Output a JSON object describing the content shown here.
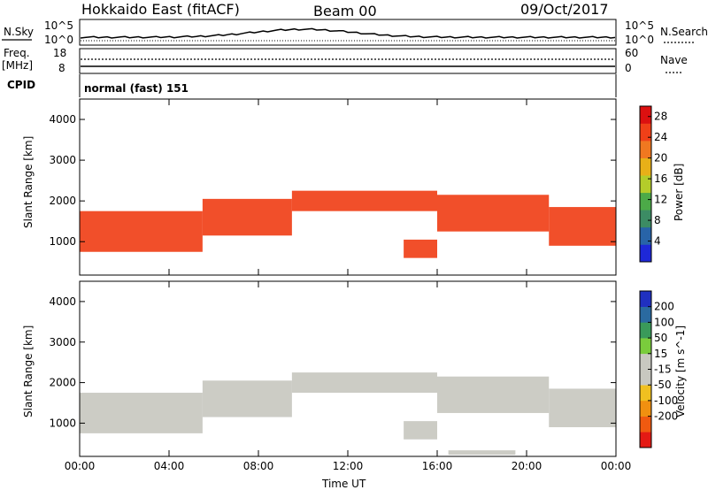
{
  "header": {
    "title": "Hokkaido East (fitACF)",
    "beam": "Beam 00",
    "date": "09/Oct/2017"
  },
  "top_panels": {
    "nsky_label": "N.Sky",
    "nsky_ticks": [
      "10^5",
      "10^0"
    ],
    "nsearch_label": "N.Search",
    "nsearch_ticks": [
      "10^5",
      "10^0"
    ],
    "freq_label_1": "Freq.",
    "freq_label_2": "[MHz]",
    "freq_ticks": [
      "18",
      "8"
    ],
    "nave_label": "Nave",
    "nave_ticks": [
      "60",
      "0"
    ],
    "cpid_label": "CPID",
    "cpid_value": "normal (fast) 151"
  },
  "colors": {
    "power_scale": [
      "#1e28d8",
      "#2864a8",
      "#3c8c64",
      "#4caa48",
      "#b4cc2a",
      "#e8b018",
      "#f07820",
      "#f04018",
      "#dc1010"
    ],
    "velocity_scale": [
      "#e41a14",
      "#f05a10",
      "#f09010",
      "#f0c020",
      "#c8c8c0",
      "#c8c8c0",
      "#7acc3c",
      "#3a9a5a",
      "#2a6aa0",
      "#2030c0"
    ]
  },
  "chart_data": [
    {
      "type": "heatmap",
      "name": "",
      "title": "",
      "xlabel": "",
      "ylabel": "Slant Range [km]",
      "x_ticks": [
        "00:00",
        "04:00",
        "08:00",
        "12:00",
        "16:00",
        "20:00",
        "00:00"
      ],
      "xlim_hours": [
        0,
        24
      ],
      "y_ticks": [
        1000,
        2000,
        3000,
        4000
      ],
      "ylim": [
        180,
        4500
      ],
      "colorbar_label": "Power [dB]",
      "colorbar_ticks": [
        4,
        8,
        12,
        16,
        20,
        24,
        28
      ],
      "colorbar_range": [
        0,
        30
      ],
      "grid": false,
      "echo_bands": [
        {
          "from_hour": 0.0,
          "to_hour": 5.5,
          "range_low": 750,
          "range_high": 1750,
          "power": 26
        },
        {
          "from_hour": 5.5,
          "to_hour": 9.5,
          "range_low": 1150,
          "range_high": 2050,
          "power": 24
        },
        {
          "from_hour": 9.5,
          "to_hour": 16.0,
          "range_low": 1750,
          "range_high": 2250,
          "power": 24
        },
        {
          "from_hour": 14.5,
          "to_hour": 16.0,
          "range_low": 600,
          "range_high": 1050,
          "power": 26
        },
        {
          "from_hour": 16.0,
          "to_hour": 21.0,
          "range_low": 1250,
          "range_high": 2150,
          "power": 26
        },
        {
          "from_hour": 21.0,
          "to_hour": 24.0,
          "range_low": 900,
          "range_high": 1850,
          "power": 26
        }
      ]
    },
    {
      "type": "heatmap",
      "name": "",
      "title": "",
      "xlabel": "Time UT",
      "ylabel": "Slant Range [km]",
      "x_ticks": [
        "00:00",
        "04:00",
        "08:00",
        "12:00",
        "16:00",
        "20:00",
        "00:00"
      ],
      "xlim_hours": [
        0,
        24
      ],
      "y_ticks": [
        1000,
        2000,
        3000,
        4000
      ],
      "ylim": [
        180,
        4500
      ],
      "colorbar_label": "Velocity [m s^-1]",
      "colorbar_ticks": [
        200,
        100,
        50,
        15,
        -15,
        -50,
        -100,
        -200
      ],
      "colorbar_range": [
        -250,
        250
      ],
      "grid": false,
      "echo_bands": [
        {
          "from_hour": 0.0,
          "to_hour": 5.5,
          "range_low": 750,
          "range_high": 1750,
          "velocity": 0
        },
        {
          "from_hour": 5.5,
          "to_hour": 9.5,
          "range_low": 1150,
          "range_high": 2050,
          "velocity": 0
        },
        {
          "from_hour": 9.5,
          "to_hour": 16.0,
          "range_low": 1750,
          "range_high": 2250,
          "velocity": 0
        },
        {
          "from_hour": 14.5,
          "to_hour": 16.0,
          "range_low": 600,
          "range_high": 1050,
          "velocity": 0
        },
        {
          "from_hour": 16.0,
          "to_hour": 21.0,
          "range_low": 1250,
          "range_high": 2150,
          "velocity": 0
        },
        {
          "from_hour": 21.0,
          "to_hour": 24.0,
          "range_low": 900,
          "range_high": 1850,
          "velocity": 0
        },
        {
          "from_hour": 16.5,
          "to_hour": 19.5,
          "range_low": 220,
          "range_high": 330,
          "velocity": -40
        }
      ]
    }
  ]
}
